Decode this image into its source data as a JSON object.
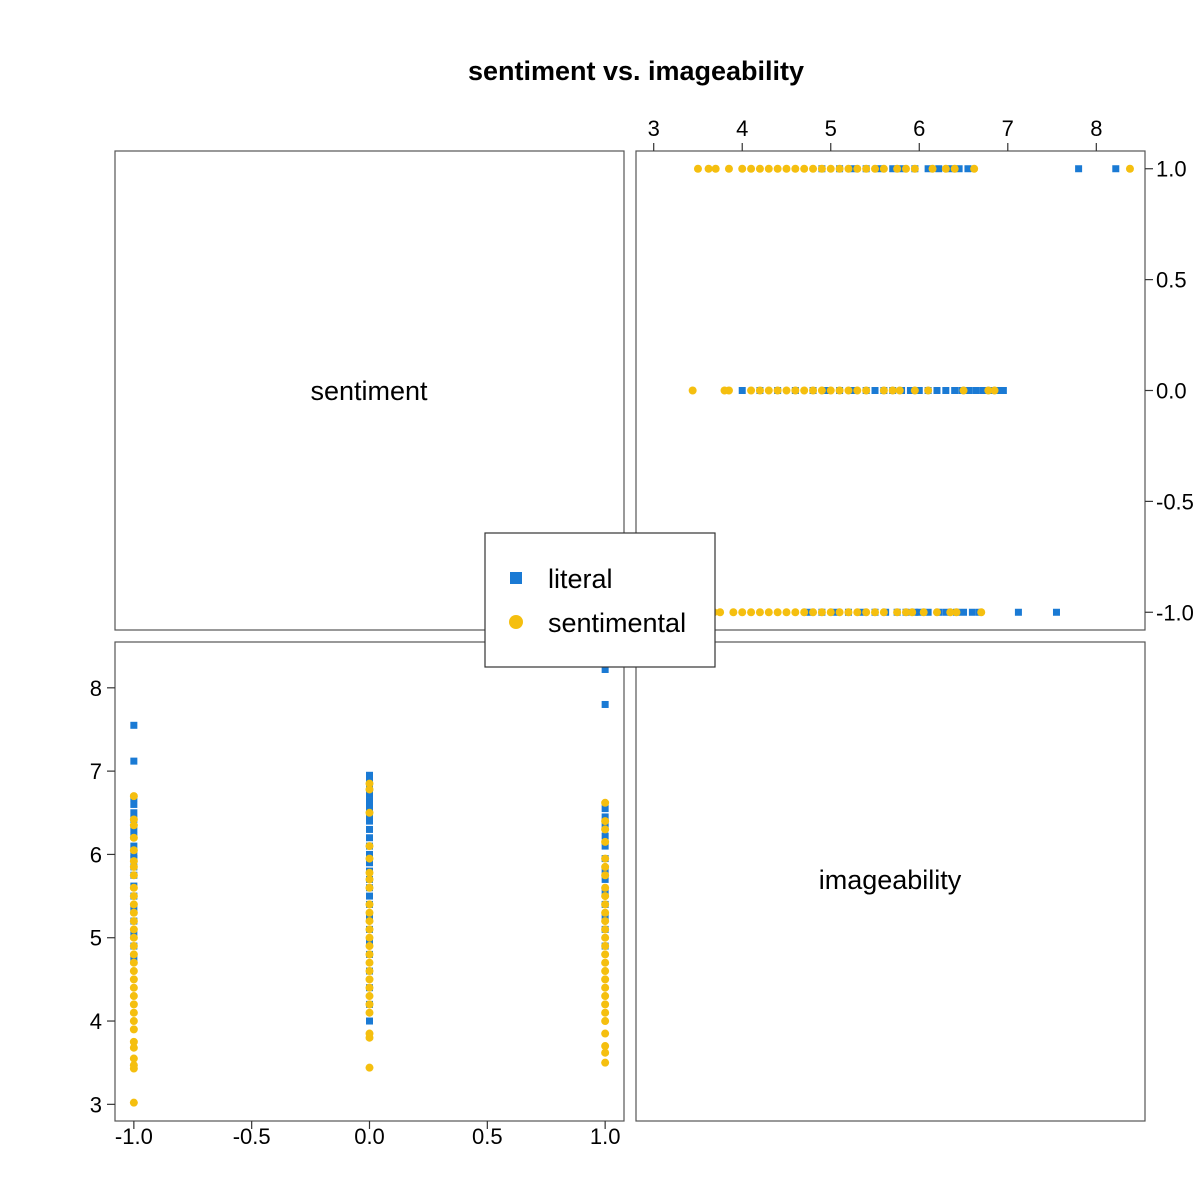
{
  "chart_data": {
    "type": "scatter",
    "title": "sentiment vs. imageability",
    "variables": [
      "sentiment",
      "imageability"
    ],
    "colors": {
      "literal": "#1a7ad4",
      "sentimental": "#f5bf0f"
    },
    "axes": {
      "sentiment": {
        "range": [
          -1.08,
          1.08
        ],
        "ticks": [
          -1.0,
          -0.5,
          0.0,
          0.5,
          1.0
        ],
        "tick_labels": [
          "-1.0",
          "-0.5",
          "0.0",
          "0.5",
          "1.0"
        ]
      },
      "imageability": {
        "range": [
          2.8,
          8.55
        ],
        "ticks": [
          3,
          4,
          5,
          6,
          7,
          8
        ],
        "tick_labels": [
          "3",
          "4",
          "5",
          "6",
          "7",
          "8"
        ]
      }
    },
    "legend": {
      "placement": "center",
      "entries": [
        {
          "name": "literal",
          "marker": "square",
          "color": "#1a7ad4"
        },
        {
          "name": "sentimental",
          "marker": "circle",
          "color": "#f5bf0f"
        }
      ]
    },
    "series": [
      {
        "name": "literal",
        "marker": "square",
        "points": [
          {
            "sentiment": -1,
            "imageability": 7.55
          },
          {
            "sentiment": -1,
            "imageability": 7.12
          },
          {
            "sentiment": -1,
            "imageability": 6.68
          },
          {
            "sentiment": -1,
            "imageability": 6.6
          },
          {
            "sentiment": -1,
            "imageability": 6.5
          },
          {
            "sentiment": -1,
            "imageability": 6.42
          },
          {
            "sentiment": -1,
            "imageability": 6.3
          },
          {
            "sentiment": -1,
            "imageability": 6.22
          },
          {
            "sentiment": -1,
            "imageability": 6.1
          },
          {
            "sentiment": -1,
            "imageability": 6.0
          },
          {
            "sentiment": -1,
            "imageability": 5.95
          },
          {
            "sentiment": -1,
            "imageability": 5.85
          },
          {
            "sentiment": -1,
            "imageability": 5.75
          },
          {
            "sentiment": -1,
            "imageability": 5.62
          },
          {
            "sentiment": -1,
            "imageability": 5.5
          },
          {
            "sentiment": -1,
            "imageability": 5.35
          },
          {
            "sentiment": -1,
            "imageability": 5.2
          },
          {
            "sentiment": -1,
            "imageability": 5.05
          },
          {
            "sentiment": -1,
            "imageability": 4.9
          },
          {
            "sentiment": -1,
            "imageability": 4.75
          },
          {
            "sentiment": 0,
            "imageability": 6.95
          },
          {
            "sentiment": 0,
            "imageability": 6.88
          },
          {
            "sentiment": 0,
            "imageability": 6.8
          },
          {
            "sentiment": 0,
            "imageability": 6.72
          },
          {
            "sentiment": 0,
            "imageability": 6.64
          },
          {
            "sentiment": 0,
            "imageability": 6.56
          },
          {
            "sentiment": 0,
            "imageability": 6.48
          },
          {
            "sentiment": 0,
            "imageability": 6.4
          },
          {
            "sentiment": 0,
            "imageability": 6.3
          },
          {
            "sentiment": 0,
            "imageability": 6.2
          },
          {
            "sentiment": 0,
            "imageability": 6.1
          },
          {
            "sentiment": 0,
            "imageability": 6.0
          },
          {
            "sentiment": 0,
            "imageability": 5.9
          },
          {
            "sentiment": 0,
            "imageability": 5.8
          },
          {
            "sentiment": 0,
            "imageability": 5.7
          },
          {
            "sentiment": 0,
            "imageability": 5.6
          },
          {
            "sentiment": 0,
            "imageability": 5.5
          },
          {
            "sentiment": 0,
            "imageability": 5.4
          },
          {
            "sentiment": 0,
            "imageability": 5.25
          },
          {
            "sentiment": 0,
            "imageability": 5.1
          },
          {
            "sentiment": 0,
            "imageability": 4.95
          },
          {
            "sentiment": 0,
            "imageability": 4.8
          },
          {
            "sentiment": 0,
            "imageability": 4.6
          },
          {
            "sentiment": 0,
            "imageability": 4.4
          },
          {
            "sentiment": 0,
            "imageability": 4.2
          },
          {
            "sentiment": 0,
            "imageability": 4.0
          },
          {
            "sentiment": 1,
            "imageability": 8.22
          },
          {
            "sentiment": 1,
            "imageability": 7.8
          },
          {
            "sentiment": 1,
            "imageability": 6.55
          },
          {
            "sentiment": 1,
            "imageability": 6.45
          },
          {
            "sentiment": 1,
            "imageability": 6.35
          },
          {
            "sentiment": 1,
            "imageability": 6.22
          },
          {
            "sentiment": 1,
            "imageability": 6.1
          },
          {
            "sentiment": 1,
            "imageability": 5.95
          },
          {
            "sentiment": 1,
            "imageability": 5.8
          },
          {
            "sentiment": 1,
            "imageability": 5.7
          },
          {
            "sentiment": 1,
            "imageability": 5.55
          },
          {
            "sentiment": 1,
            "imageability": 5.4
          },
          {
            "sentiment": 1,
            "imageability": 5.25
          },
          {
            "sentiment": 1,
            "imageability": 5.1
          },
          {
            "sentiment": 1,
            "imageability": 4.9
          }
        ]
      },
      {
        "name": "sentimental",
        "marker": "circle",
        "points": [
          {
            "sentiment": -1,
            "imageability": 6.7
          },
          {
            "sentiment": -1,
            "imageability": 6.42
          },
          {
            "sentiment": -1,
            "imageability": 6.35
          },
          {
            "sentiment": -1,
            "imageability": 6.2
          },
          {
            "sentiment": -1,
            "imageability": 6.05
          },
          {
            "sentiment": -1,
            "imageability": 5.92
          },
          {
            "sentiment": -1,
            "imageability": 5.85
          },
          {
            "sentiment": -1,
            "imageability": 5.75
          },
          {
            "sentiment": -1,
            "imageability": 5.6
          },
          {
            "sentiment": -1,
            "imageability": 5.5
          },
          {
            "sentiment": -1,
            "imageability": 5.4
          },
          {
            "sentiment": -1,
            "imageability": 5.3
          },
          {
            "sentiment": -1,
            "imageability": 5.2
          },
          {
            "sentiment": -1,
            "imageability": 5.1
          },
          {
            "sentiment": -1,
            "imageability": 5.0
          },
          {
            "sentiment": -1,
            "imageability": 4.9
          },
          {
            "sentiment": -1,
            "imageability": 4.8
          },
          {
            "sentiment": -1,
            "imageability": 4.7
          },
          {
            "sentiment": -1,
            "imageability": 4.6
          },
          {
            "sentiment": -1,
            "imageability": 4.5
          },
          {
            "sentiment": -1,
            "imageability": 4.4
          },
          {
            "sentiment": -1,
            "imageability": 4.3
          },
          {
            "sentiment": -1,
            "imageability": 4.2
          },
          {
            "sentiment": -1,
            "imageability": 4.1
          },
          {
            "sentiment": -1,
            "imageability": 4.0
          },
          {
            "sentiment": -1,
            "imageability": 3.9
          },
          {
            "sentiment": -1,
            "imageability": 3.75
          },
          {
            "sentiment": -1,
            "imageability": 3.68
          },
          {
            "sentiment": -1,
            "imageability": 3.55
          },
          {
            "sentiment": -1,
            "imageability": 3.47
          },
          {
            "sentiment": -1,
            "imageability": 3.43
          },
          {
            "sentiment": -1,
            "imageability": 3.02
          },
          {
            "sentiment": 0,
            "imageability": 6.85
          },
          {
            "sentiment": 0,
            "imageability": 6.78
          },
          {
            "sentiment": 0,
            "imageability": 6.5
          },
          {
            "sentiment": 0,
            "imageability": 6.1
          },
          {
            "sentiment": 0,
            "imageability": 5.95
          },
          {
            "sentiment": 0,
            "imageability": 5.78
          },
          {
            "sentiment": 0,
            "imageability": 5.7
          },
          {
            "sentiment": 0,
            "imageability": 5.6
          },
          {
            "sentiment": 0,
            "imageability": 5.4
          },
          {
            "sentiment": 0,
            "imageability": 5.3
          },
          {
            "sentiment": 0,
            "imageability": 5.2
          },
          {
            "sentiment": 0,
            "imageability": 5.1
          },
          {
            "sentiment": 0,
            "imageability": 5.0
          },
          {
            "sentiment": 0,
            "imageability": 4.9
          },
          {
            "sentiment": 0,
            "imageability": 4.8
          },
          {
            "sentiment": 0,
            "imageability": 4.7
          },
          {
            "sentiment": 0,
            "imageability": 4.6
          },
          {
            "sentiment": 0,
            "imageability": 4.5
          },
          {
            "sentiment": 0,
            "imageability": 4.4
          },
          {
            "sentiment": 0,
            "imageability": 4.3
          },
          {
            "sentiment": 0,
            "imageability": 4.2
          },
          {
            "sentiment": 0,
            "imageability": 4.1
          },
          {
            "sentiment": 0,
            "imageability": 3.85
          },
          {
            "sentiment": 0,
            "imageability": 3.8
          },
          {
            "sentiment": 0,
            "imageability": 3.44
          },
          {
            "sentiment": 1,
            "imageability": 8.38
          },
          {
            "sentiment": 1,
            "imageability": 6.62
          },
          {
            "sentiment": 1,
            "imageability": 6.4
          },
          {
            "sentiment": 1,
            "imageability": 6.3
          },
          {
            "sentiment": 1,
            "imageability": 6.15
          },
          {
            "sentiment": 1,
            "imageability": 5.95
          },
          {
            "sentiment": 1,
            "imageability": 5.85
          },
          {
            "sentiment": 1,
            "imageability": 5.75
          },
          {
            "sentiment": 1,
            "imageability": 5.6
          },
          {
            "sentiment": 1,
            "imageability": 5.5
          },
          {
            "sentiment": 1,
            "imageability": 5.4
          },
          {
            "sentiment": 1,
            "imageability": 5.3
          },
          {
            "sentiment": 1,
            "imageability": 5.2
          },
          {
            "sentiment": 1,
            "imageability": 5.1
          },
          {
            "sentiment": 1,
            "imageability": 5.0
          },
          {
            "sentiment": 1,
            "imageability": 4.9
          },
          {
            "sentiment": 1,
            "imageability": 4.8
          },
          {
            "sentiment": 1,
            "imageability": 4.7
          },
          {
            "sentiment": 1,
            "imageability": 4.6
          },
          {
            "sentiment": 1,
            "imageability": 4.5
          },
          {
            "sentiment": 1,
            "imageability": 4.4
          },
          {
            "sentiment": 1,
            "imageability": 4.3
          },
          {
            "sentiment": 1,
            "imageability": 4.2
          },
          {
            "sentiment": 1,
            "imageability": 4.1
          },
          {
            "sentiment": 1,
            "imageability": 4.0
          },
          {
            "sentiment": 1,
            "imageability": 3.85
          },
          {
            "sentiment": 1,
            "imageability": 3.7
          },
          {
            "sentiment": 1,
            "imageability": 3.62
          },
          {
            "sentiment": 1,
            "imageability": 3.5
          }
        ]
      }
    ]
  }
}
